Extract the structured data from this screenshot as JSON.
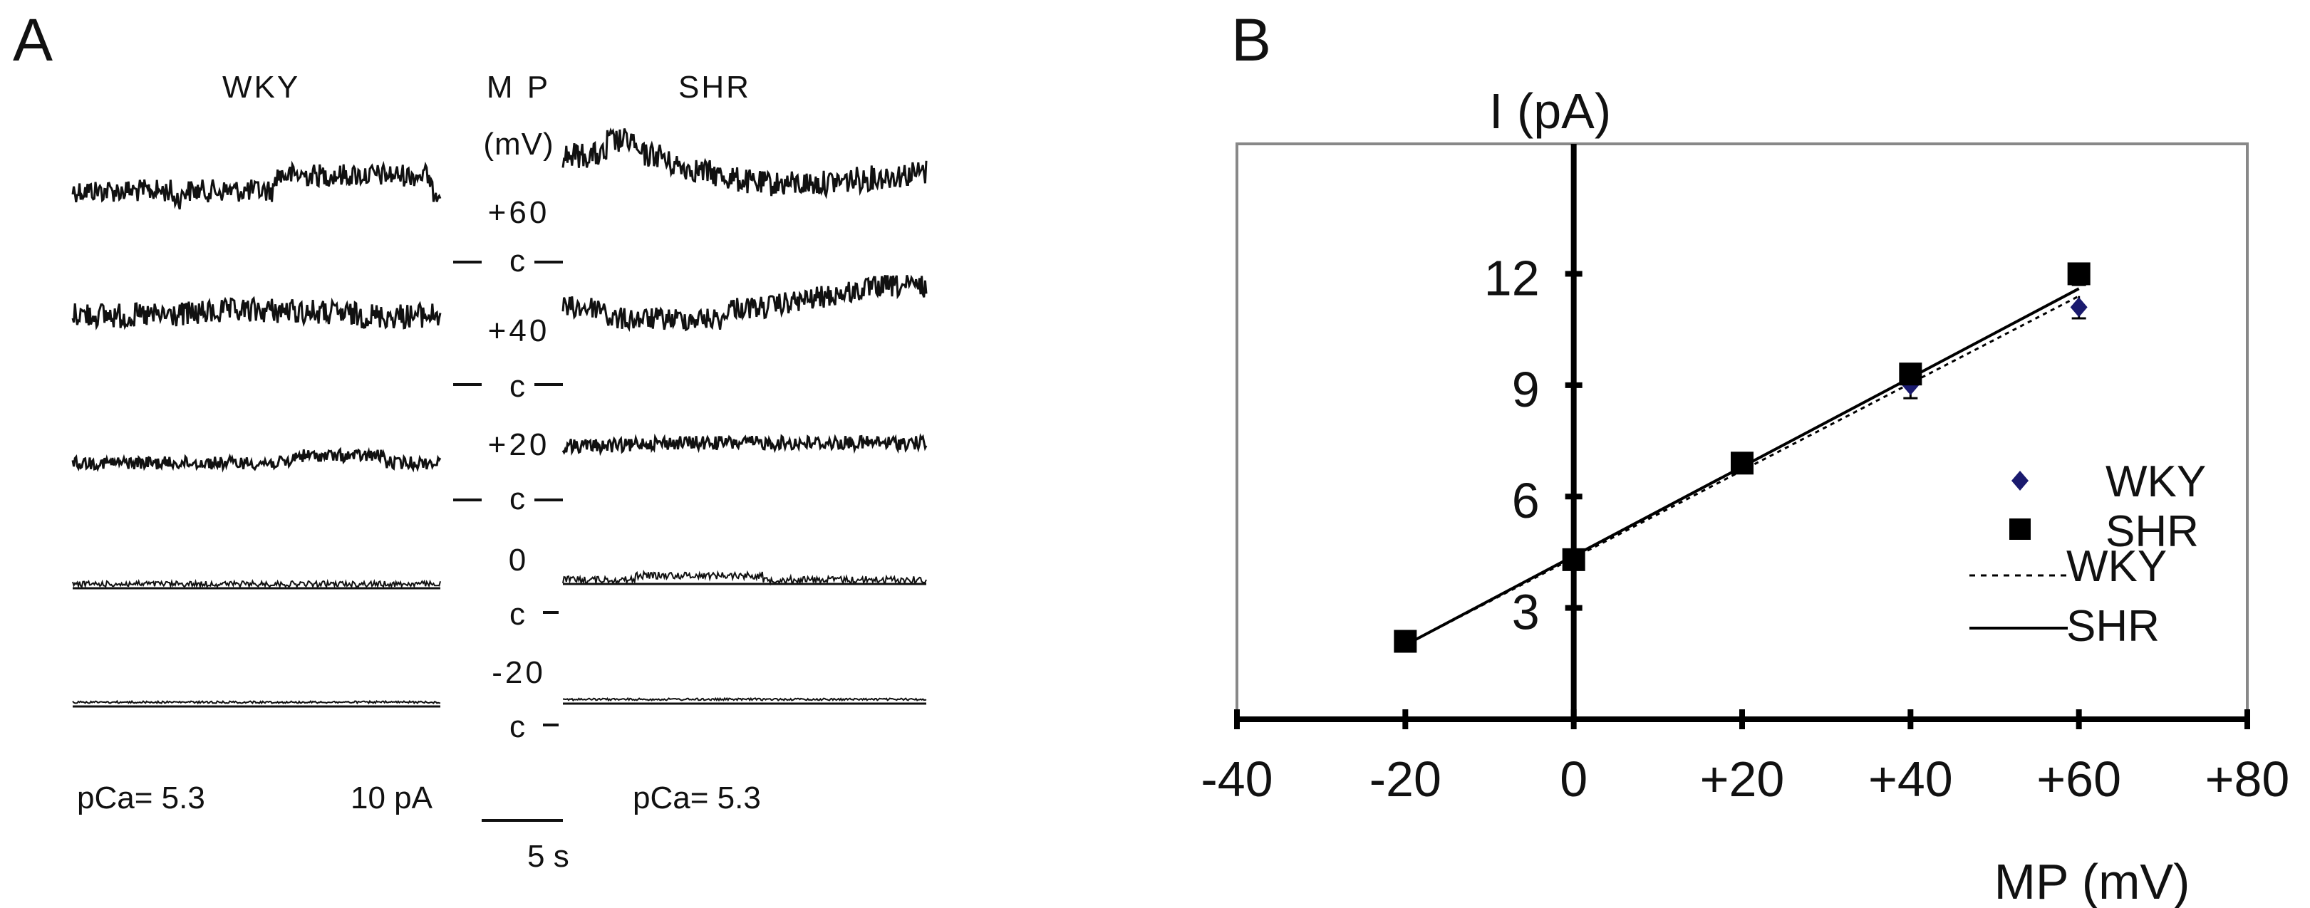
{
  "panel_a": {
    "letter": "A",
    "left_title": "WKY",
    "mp_header": [
      "M P",
      "(mV)"
    ],
    "right_title": "SHR",
    "closed_label": "c",
    "voltages": [
      "+60",
      "+40",
      "+20",
      "0",
      "-20"
    ],
    "left_pca": "pCa= 5.3",
    "right_pca": "pCa= 5.3",
    "scale_current": "10 pA",
    "scale_time": "5 s"
  },
  "panel_b": {
    "letter": "B"
  },
  "chart_data": {
    "type": "scatter",
    "title": "",
    "xlabel": "MP (mV)",
    "ylabel": "I (pA)",
    "xlim": [
      -40,
      80
    ],
    "ylim": [
      0,
      15.5
    ],
    "x_ticks": [
      "-40",
      "-20",
      "0",
      "+20",
      "+40",
      "+60",
      "+80"
    ],
    "x_tick_values": [
      -40,
      -20,
      0,
      20,
      40,
      60,
      80
    ],
    "y_ticks": [
      "3",
      "6",
      "9",
      "12"
    ],
    "y_tick_values": [
      3,
      6,
      9,
      12
    ],
    "series": [
      {
        "name": "WKY",
        "kind": "points",
        "marker": "diamond",
        "color": "#1a1a6e",
        "x": [
          -20,
          0,
          20,
          40,
          60
        ],
        "y": [
          2.1,
          4.3,
          6.9,
          9.0,
          11.1
        ],
        "err": [
          0,
          0,
          0,
          0.35,
          0.3
        ]
      },
      {
        "name": "SHR",
        "kind": "points",
        "marker": "square",
        "color": "#000000",
        "x": [
          -20,
          0,
          20,
          40,
          60
        ],
        "y": [
          2.1,
          4.3,
          6.9,
          9.3,
          12.0
        ],
        "err": [
          0,
          0,
          0,
          0.3,
          0.3
        ]
      },
      {
        "name": "WKY",
        "kind": "fit",
        "dash": "6,6",
        "color": "#000000",
        "x": [
          -20,
          60
        ],
        "y": [
          2.0,
          11.4
        ]
      },
      {
        "name": "SHR",
        "kind": "fit",
        "dash": "",
        "color": "#000000",
        "x": [
          -20,
          60
        ],
        "y": [
          2.0,
          11.6
        ]
      }
    ],
    "legend_position": "right"
  }
}
